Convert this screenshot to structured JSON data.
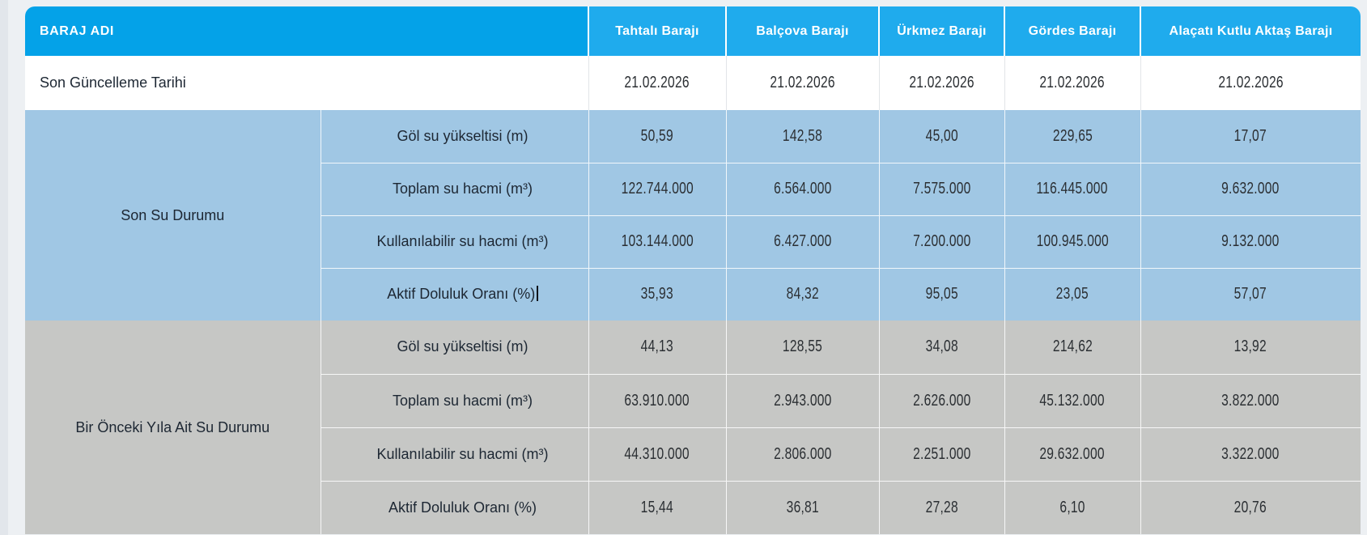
{
  "colors": {
    "header_corner": "#04A2E8",
    "header_columns": "#1FABED",
    "section_blue": "#A0C7E4",
    "section_gray": "#C6C7C5",
    "page_background": "#EDF0F3",
    "label_text": "#1D2733",
    "number_text": "#2B2F33"
  },
  "table": {
    "corner_header": "BARAJ ADI",
    "columns": [
      "Tahtalı Barajı",
      "Balçova Barajı",
      "Ürkmez Barajı",
      "Gördes Barajı",
      "Alaçatı Kutlu Aktaş Barajı"
    ],
    "update_row": {
      "label": "Son Güncelleme Tarihi",
      "values": [
        "21.02.2026",
        "21.02.2026",
        "21.02.2026",
        "21.02.2026",
        "21.02.2026"
      ]
    },
    "sections": [
      {
        "title": "Son Su Durumu",
        "style": "blue",
        "rows": [
          {
            "metric": "Göl su yükseltisi (m)",
            "values": [
              "50,59",
              "142,58",
              "45,00",
              "229,65",
              "17,07"
            ]
          },
          {
            "metric": "Toplam su hacmi (m³)",
            "values": [
              "122.744.000",
              "6.564.000",
              "7.575.000",
              "116.445.000",
              "9.632.000"
            ]
          },
          {
            "metric": "Kullanılabilir su hacmi (m³)",
            "values": [
              "103.144.000",
              "6.427.000",
              "7.200.000",
              "100.945.000",
              "9.132.000"
            ]
          },
          {
            "metric": "Aktif Doluluk Oranı (%)",
            "has_caret": true,
            "values": [
              "35,93",
              "84,32",
              "95,05",
              "23,05",
              "57,07"
            ]
          }
        ]
      },
      {
        "title": "Bir Önceki Yıla Ait Su Durumu",
        "style": "gray",
        "rows": [
          {
            "metric": "Göl su yükseltisi (m)",
            "values": [
              "44,13",
              "128,55",
              "34,08",
              "214,62",
              "13,92"
            ]
          },
          {
            "metric": "Toplam su hacmi (m³)",
            "values": [
              "63.910.000",
              "2.943.000",
              "2.626.000",
              "45.132.000",
              "3.822.000"
            ]
          },
          {
            "metric": "Kullanılabilir su hacmi (m³)",
            "values": [
              "44.310.000",
              "2.806.000",
              "2.251.000",
              "29.632.000",
              "3.322.000"
            ]
          },
          {
            "metric": "Aktif Doluluk Oranı (%)",
            "values": [
              "15,44",
              "36,81",
              "27,28",
              "6,10",
              "20,76"
            ]
          }
        ]
      }
    ]
  }
}
